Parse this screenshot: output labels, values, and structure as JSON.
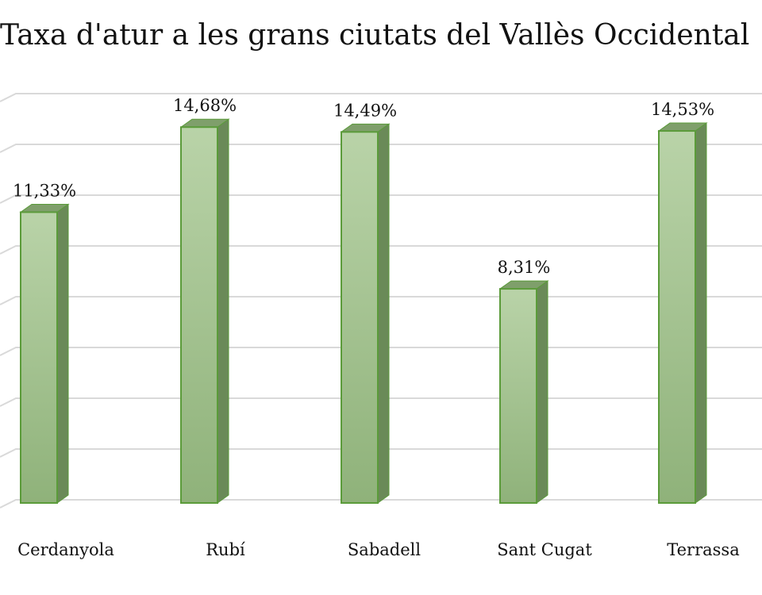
{
  "chart_data": {
    "type": "bar",
    "title": "Taxa d'atur a les grans ciutats del Vallès Occidental",
    "categories": [
      "Cerdanyola",
      "Rubí",
      "Sabadell",
      "Sant Cugat",
      "Terrassa"
    ],
    "values": [
      11.33,
      14.68,
      14.49,
      8.31,
      14.53
    ],
    "data_labels": [
      "11,33%",
      "14,68%",
      "14,49%",
      "8,31%",
      "14,53%"
    ],
    "ylim": [
      0,
      16
    ],
    "grid": true,
    "legend": "none",
    "bar_style": "3d",
    "colors": {
      "bar_front_top": "#b9d3a8",
      "bar_front_bottom": "#8fb27a",
      "bar_side": "#6a8a58",
      "bar_top": "#7f9f6b",
      "bar_edge": "#5b9b3a",
      "grid": "#d9d9d9"
    }
  }
}
